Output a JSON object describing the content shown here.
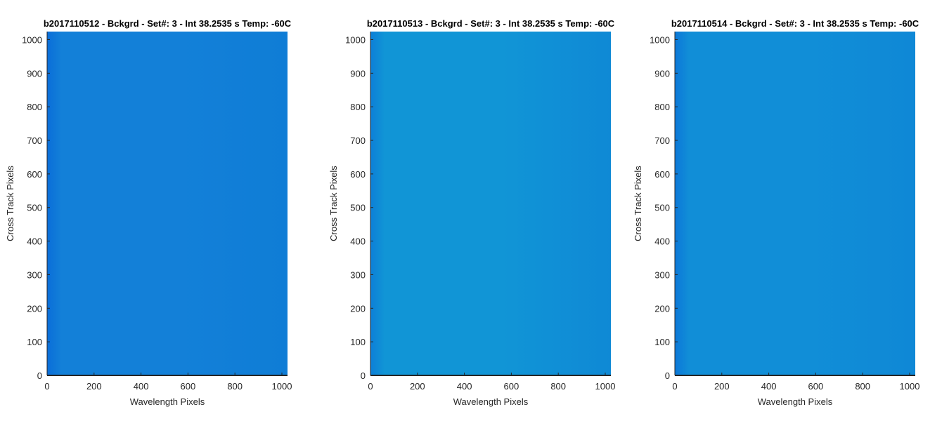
{
  "figure": {
    "background": "#ffffff",
    "colormap": [
      "#0a6fd8",
      "#0e8fd4"
    ]
  },
  "chart_data": [
    {
      "type": "heatmap",
      "title": "b2017110512 - Bckgrd - Set#: 3 - Int 38.2535 s Temp: -60C",
      "xlabel": "Wavelength Pixels",
      "ylabel": "Cross Track Pixels",
      "xlim": [
        0,
        1024
      ],
      "ylim": [
        0,
        1024
      ],
      "xticks": [
        "0",
        "200",
        "400",
        "600",
        "800",
        "1000"
      ],
      "yticks": [
        "0",
        "100",
        "200",
        "300",
        "400",
        "500",
        "600",
        "700",
        "800",
        "900",
        "1000"
      ],
      "color_left": "#0a6ed9",
      "color_center": "#1380d8",
      "color_right": "#0f7dd6"
    },
    {
      "type": "heatmap",
      "title": "b2017110513 - Bckgrd - Set#: 3 - Int 38.2535 s Temp: -60C",
      "xlabel": "Wavelength Pixels",
      "ylabel": "Cross Track Pixels",
      "xlim": [
        0,
        1024
      ],
      "ylim": [
        0,
        1024
      ],
      "xticks": [
        "0",
        "200",
        "400",
        "600",
        "800",
        "1000"
      ],
      "yticks": [
        "0",
        "100",
        "200",
        "300",
        "400",
        "500",
        "600",
        "700",
        "800",
        "900",
        "1000"
      ],
      "color_left": "#0d7fd7",
      "color_center": "#1195d6",
      "color_right": "#0f89d5"
    },
    {
      "type": "heatmap",
      "title": "b2017110514 - Bckgrd - Set#: 3 - Int 38.2535 s Temp: -60C",
      "xlabel": "Wavelength Pixels",
      "ylabel": "Cross Track Pixels",
      "xlim": [
        0,
        1024
      ],
      "ylim": [
        0,
        1024
      ],
      "xticks": [
        "0",
        "200",
        "400",
        "600",
        "800",
        "1000"
      ],
      "yticks": [
        "0",
        "100",
        "200",
        "300",
        "400",
        "500",
        "600",
        "700",
        "800",
        "900",
        "1000"
      ],
      "color_left": "#0c78d8",
      "color_center": "#118ed7",
      "color_right": "#0f88d6"
    }
  ]
}
